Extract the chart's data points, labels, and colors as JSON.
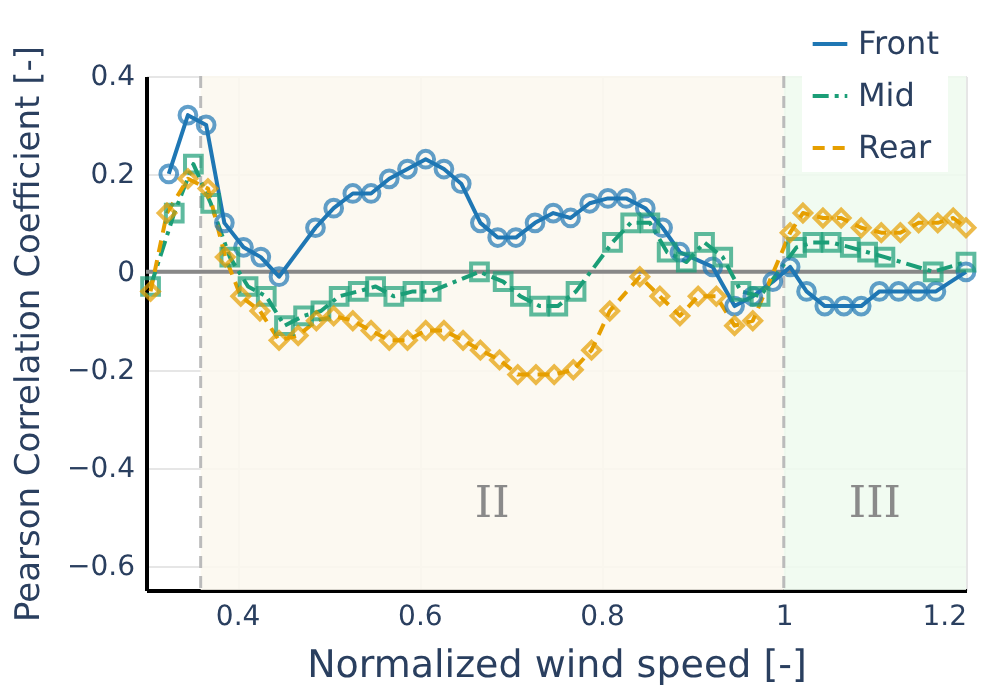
{
  "chart_data": {
    "type": "line",
    "xlabel": "Normalized wind speed [-]",
    "ylabel": "Pearson Correlation Coefficient [-]",
    "xlim": [
      0.3,
      1.2
    ],
    "ylim": [
      -0.65,
      0.4
    ],
    "xticks": [
      0.4,
      0.6,
      0.8,
      1,
      1.2
    ],
    "yticks": [
      -0.6,
      -0.4,
      -0.2,
      0,
      0.2,
      0.4
    ],
    "grid": true,
    "legend": "top right",
    "bands": [
      {
        "axis": "x",
        "from": 0.36,
        "to": 1,
        "label": "II",
        "color": "#fbf8ee"
      },
      {
        "axis": "x",
        "from": 1,
        "to": 1.2,
        "label": "III",
        "color": "#eefaef"
      }
    ],
    "ref_lines": [
      {
        "axis": "x",
        "value": 0.36,
        "color": "#bbbbbb",
        "line_style": "dashed"
      },
      {
        "axis": "x",
        "value": 1,
        "color": "#bbbbbb",
        "line_style": "dashed"
      },
      {
        "axis": "y",
        "value": 0,
        "color": "#888888",
        "line_style": "solid"
      }
    ],
    "series": [
      {
        "name": "Front",
        "color": "#1f77b4",
        "line_style": "solid",
        "marker": "circle",
        "x": [
          0.325,
          0.346,
          0.366,
          0.386,
          0.407,
          0.426,
          0.446,
          0.486,
          0.506,
          0.527,
          0.547,
          0.567,
          0.587,
          0.607,
          0.627,
          0.646,
          0.667,
          0.686,
          0.706,
          0.727,
          0.747,
          0.766,
          0.787,
          0.807,
          0.827,
          0.848,
          0.867,
          0.886,
          0.922,
          0.946,
          0.966,
          0.988,
          1.007,
          1.025,
          1.045,
          1.066,
          1.085,
          1.105,
          1.126,
          1.147,
          1.167,
          1.2
        ],
        "values": [
          0.2,
          0.32,
          0.3,
          0.1,
          0.05,
          0.03,
          -0.01,
          0.09,
          0.13,
          0.16,
          0.16,
          0.19,
          0.21,
          0.23,
          0.21,
          0.18,
          0.1,
          0.07,
          0.07,
          0.1,
          0.12,
          0.11,
          0.14,
          0.15,
          0.15,
          0.13,
          0.09,
          0.04,
          0.01,
          -0.07,
          -0.05,
          -0.02,
          0.01,
          -0.04,
          -0.07,
          -0.07,
          -0.07,
          -0.04,
          -0.04,
          -0.04,
          -0.04,
          0
        ]
      },
      {
        "name": "Mid",
        "color": "#1b9e77",
        "line_style": "dashdot",
        "marker": "square",
        "x": [
          0.305,
          0.331,
          0.352,
          0.371,
          0.392,
          0.412,
          0.432,
          0.452,
          0.473,
          0.492,
          0.512,
          0.533,
          0.552,
          0.572,
          0.593,
          0.613,
          0.666,
          0.692,
          0.711,
          0.732,
          0.752,
          0.772,
          0.812,
          0.832,
          0.853,
          0.872,
          0.893,
          0.913,
          0.933,
          0.953,
          0.974,
          1.014,
          1.032,
          1.052,
          1.073,
          1.092,
          1.111,
          1.164,
          1.2
        ],
        "values": [
          -0.03,
          0.12,
          0.22,
          0.14,
          0.03,
          -0.03,
          -0.05,
          -0.11,
          -0.09,
          -0.08,
          -0.05,
          -0.04,
          -0.03,
          -0.05,
          -0.04,
          -0.04,
          0,
          -0.02,
          -0.05,
          -0.07,
          -0.07,
          -0.04,
          0.06,
          0.1,
          0.1,
          0.04,
          0.02,
          0.06,
          0.03,
          -0.04,
          -0.05,
          0.05,
          0.06,
          0.06,
          0.05,
          0.04,
          0.03,
          0,
          0.02
        ]
      },
      {
        "name": "Rear",
        "color": "#e69f00",
        "line_style": "dashed",
        "marker": "diamond",
        "x": [
          0.305,
          0.323,
          0.346,
          0.368,
          0.387,
          0.404,
          0.425,
          0.446,
          0.467,
          0.487,
          0.506,
          0.527,
          0.547,
          0.567,
          0.587,
          0.607,
          0.627,
          0.648,
          0.667,
          0.688,
          0.708,
          0.728,
          0.748,
          0.769,
          0.789,
          0.809,
          0.842,
          0.864,
          0.886,
          0.906,
          0.926,
          0.946,
          0.966,
          1.007,
          1.021,
          1.043,
          1.063,
          1.085,
          1.107,
          1.128,
          1.148,
          1.169,
          1.186,
          1.2
        ],
        "values": [
          -0.04,
          0.12,
          0.19,
          0.17,
          0.03,
          -0.05,
          -0.08,
          -0.14,
          -0.13,
          -0.1,
          -0.09,
          -0.1,
          -0.12,
          -0.14,
          -0.14,
          -0.12,
          -0.12,
          -0.14,
          -0.16,
          -0.18,
          -0.21,
          -0.21,
          -0.21,
          -0.2,
          -0.16,
          -0.08,
          -0.01,
          -0.05,
          -0.09,
          -0.05,
          -0.05,
          -0.11,
          -0.1,
          0.08,
          0.12,
          0.11,
          0.11,
          0.09,
          0.08,
          0.08,
          0.1,
          0.1,
          0.11,
          0.09
        ]
      }
    ]
  }
}
